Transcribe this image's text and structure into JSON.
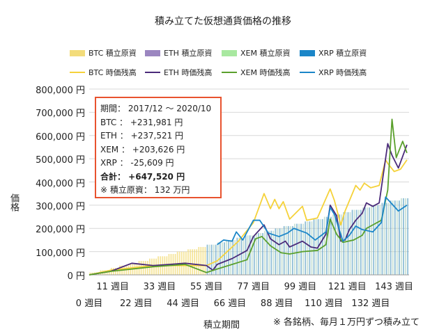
{
  "chart_data": {
    "type": "line",
    "title": "積み立てた仮想通貨価格の推移",
    "xlabel": "積立期間",
    "ylabel": "価格",
    "ylim": [
      0,
      800000
    ],
    "xlim": [
      0,
      150
    ],
    "grid": true,
    "legend_position": "top",
    "yticks": [
      "0 円",
      "100,000 円",
      "200,000 円",
      "300,000 円",
      "400,000 円",
      "500,000 円",
      "600,000 円",
      "700,000 円",
      "800,000 円"
    ],
    "xticks_upper": [
      "11 週目",
      "33 週目",
      "55 週目",
      "77 週目",
      "99 週目",
      "121 週目",
      "143 週目"
    ],
    "xticks_lower": [
      "0 週目",
      "22 週目",
      "44 週目",
      "66 週目",
      "88 週目",
      "110 週目",
      "132 週目"
    ],
    "legend": [
      "BTC 積立原資",
      "ETH 積立原資",
      "XEM 積立原資",
      "XRP 積立原資",
      "BTC 時価残高",
      "ETH 時価残高",
      "XEM 時価残高",
      "XRP 時価残高"
    ],
    "principal_bars": {
      "colors": [
        "#f3dc7a",
        "#9b86c0",
        "#a8d8a0",
        "#6aa8c8"
      ],
      "monthly_values": [
        10000,
        20000,
        30000,
        40000,
        50000,
        60000,
        70000,
        80000,
        90000,
        100000,
        110000,
        120000,
        130000,
        140000,
        150000,
        160000,
        170000,
        180000,
        190000,
        200000,
        210000,
        220000,
        230000,
        240000,
        250000,
        260000,
        270000,
        280000,
        290000,
        300000,
        310000,
        320000,
        330000
      ]
    },
    "series": [
      {
        "name": "BTC 時価残高",
        "color": "#f5d23a",
        "points": [
          [
            0,
            0
          ],
          [
            10,
            20000
          ],
          [
            30,
            40000
          ],
          [
            55,
            40000
          ],
          [
            60,
            60000
          ],
          [
            70,
            145000
          ],
          [
            77,
            225000
          ],
          [
            82,
            350000
          ],
          [
            85,
            285000
          ],
          [
            87,
            325000
          ],
          [
            89,
            285000
          ],
          [
            91,
            315000
          ],
          [
            94,
            240000
          ],
          [
            100,
            295000
          ],
          [
            102,
            235000
          ],
          [
            107,
            245000
          ],
          [
            113,
            370000
          ],
          [
            115,
            320000
          ],
          [
            118,
            215000
          ],
          [
            120,
            275000
          ],
          [
            125,
            385000
          ],
          [
            127,
            365000
          ],
          [
            129,
            395000
          ],
          [
            132,
            375000
          ],
          [
            136,
            385000
          ],
          [
            139,
            495000
          ],
          [
            140,
            480000
          ],
          [
            143,
            445000
          ],
          [
            146,
            455000
          ],
          [
            149,
            495000
          ]
        ]
      },
      {
        "name": "ETH 時価残高",
        "color": "#4a2a7a",
        "points": [
          [
            0,
            0
          ],
          [
            10,
            15000
          ],
          [
            20,
            50000
          ],
          [
            30,
            40000
          ],
          [
            45,
            50000
          ],
          [
            55,
            40000
          ],
          [
            58,
            20000
          ],
          [
            60,
            45000
          ],
          [
            67,
            70000
          ],
          [
            74,
            105000
          ],
          [
            77,
            165000
          ],
          [
            82,
            215000
          ],
          [
            85,
            155000
          ],
          [
            89,
            130000
          ],
          [
            92,
            145000
          ],
          [
            94,
            120000
          ],
          [
            100,
            145000
          ],
          [
            104,
            120000
          ],
          [
            107,
            115000
          ],
          [
            111,
            175000
          ],
          [
            113,
            300000
          ],
          [
            116,
            255000
          ],
          [
            118,
            145000
          ],
          [
            120,
            150000
          ],
          [
            122,
            195000
          ],
          [
            125,
            235000
          ],
          [
            128,
            265000
          ],
          [
            130,
            310000
          ],
          [
            133,
            295000
          ],
          [
            136,
            310000
          ],
          [
            140,
            565000
          ],
          [
            142,
            515000
          ],
          [
            145,
            460000
          ],
          [
            149,
            560000
          ]
        ]
      },
      {
        "name": "XEM 時価残高",
        "color": "#5aa02c",
        "points": [
          [
            0,
            0
          ],
          [
            10,
            15000
          ],
          [
            30,
            35000
          ],
          [
            45,
            45000
          ],
          [
            55,
            10000
          ],
          [
            60,
            25000
          ],
          [
            67,
            45000
          ],
          [
            74,
            65000
          ],
          [
            78,
            155000
          ],
          [
            81,
            165000
          ],
          [
            85,
            125000
          ],
          [
            90,
            95000
          ],
          [
            94,
            90000
          ],
          [
            100,
            100000
          ],
          [
            107,
            105000
          ],
          [
            111,
            130000
          ],
          [
            113,
            240000
          ],
          [
            116,
            175000
          ],
          [
            119,
            140000
          ],
          [
            124,
            150000
          ],
          [
            128,
            170000
          ],
          [
            130,
            200000
          ],
          [
            137,
            235000
          ],
          [
            140,
            365000
          ],
          [
            142,
            670000
          ],
          [
            144,
            505000
          ],
          [
            147,
            575000
          ],
          [
            149,
            525000
          ]
        ]
      },
      {
        "name": "XRP 時価残高",
        "color": "#1b86c8",
        "points": [
          [
            60,
            130000
          ],
          [
            63,
            150000
          ],
          [
            67,
            145000
          ],
          [
            69,
            185000
          ],
          [
            72,
            150000
          ],
          [
            77,
            235000
          ],
          [
            80,
            235000
          ],
          [
            84,
            180000
          ],
          [
            89,
            165000
          ],
          [
            93,
            180000
          ],
          [
            96,
            200000
          ],
          [
            102,
            180000
          ],
          [
            106,
            150000
          ],
          [
            111,
            185000
          ],
          [
            113,
            290000
          ],
          [
            115,
            260000
          ],
          [
            119,
            145000
          ],
          [
            122,
            170000
          ],
          [
            125,
            210000
          ],
          [
            128,
            195000
          ],
          [
            133,
            185000
          ],
          [
            137,
            225000
          ],
          [
            139,
            335000
          ],
          [
            141,
            315000
          ],
          [
            145,
            275000
          ],
          [
            149,
            300000
          ]
        ]
      }
    ]
  },
  "summary": {
    "period": "期間： 2017/12 ～ 2020/10",
    "btc": "BTC ： +231,981 円",
    "eth": "ETH ： +237,521 円",
    "xem": "XEM ： +203,626 円",
    "xrp": "XRP ： -25,609 円",
    "total": "合計： +647,520 円",
    "principal": "※ 積立原資： 132 万円"
  },
  "note": "※ 各銘柄、毎月１万円ずつ積み立て"
}
